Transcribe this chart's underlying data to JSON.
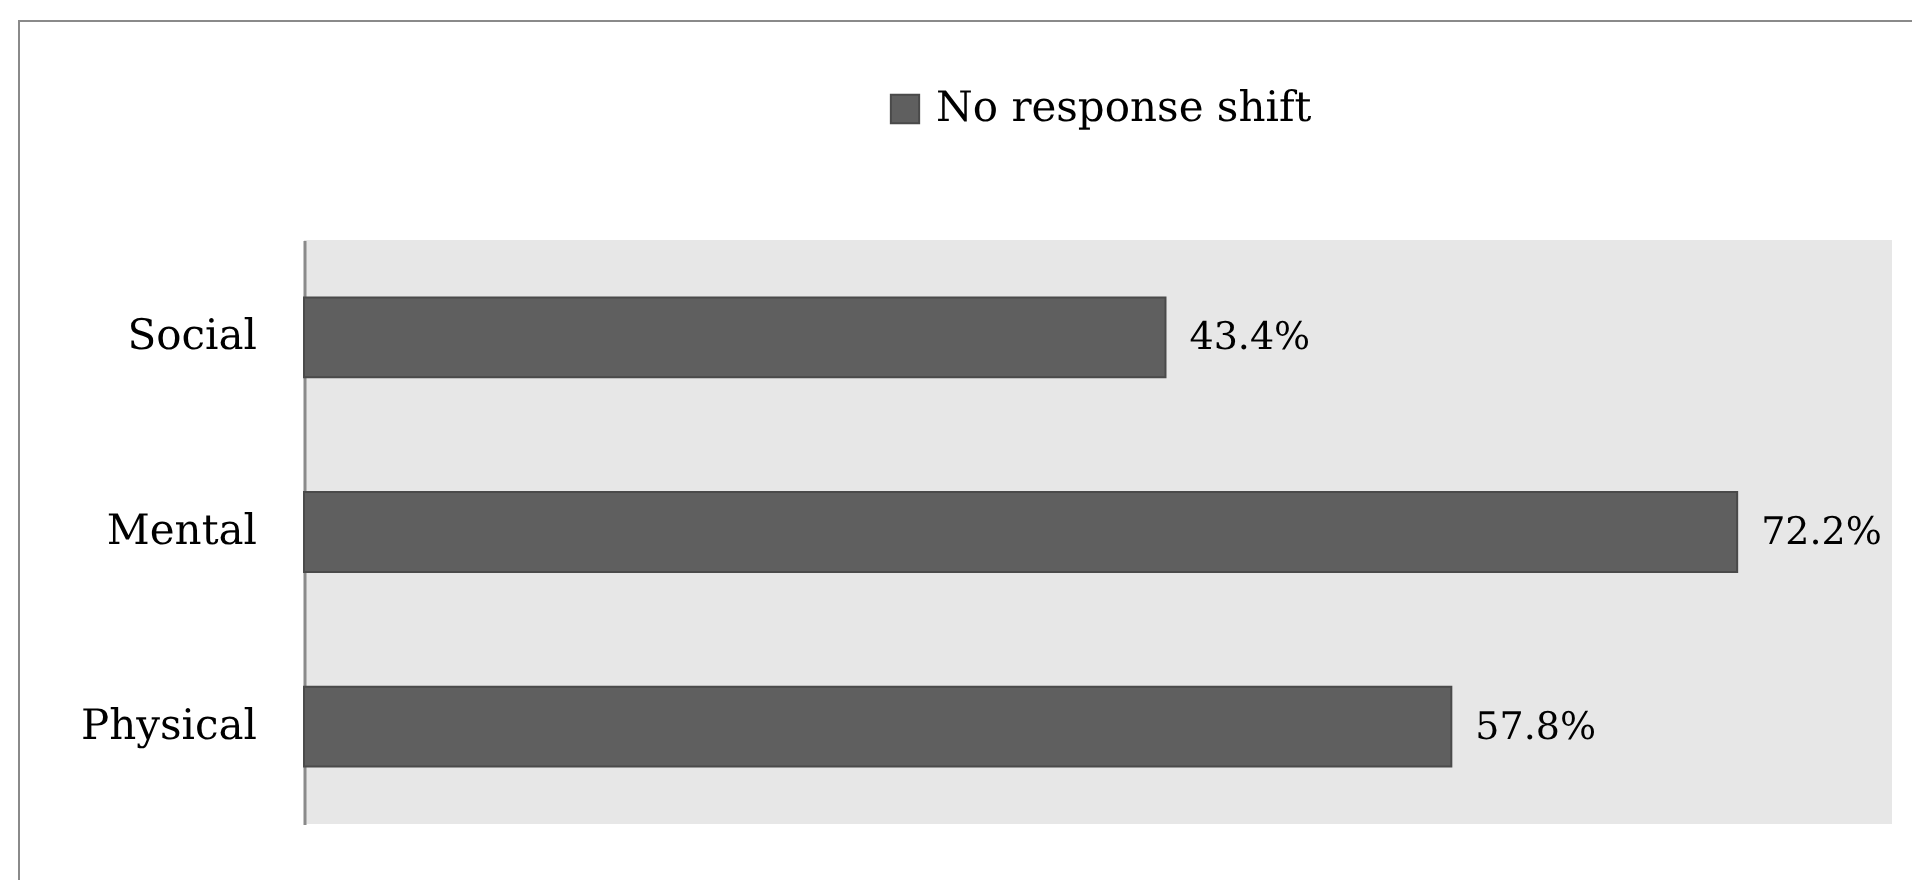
{
  "chart_data": {
    "type": "bar",
    "orientation": "horizontal",
    "categories": [
      "Social",
      "Mental",
      "Physical"
    ],
    "series": [
      {
        "name": "No response shift",
        "color": "#5f5f5f",
        "values": [
          43.4,
          72.2,
          57.8
        ],
        "value_labels": [
          "43.4%",
          "72.2%",
          "57.8%"
        ]
      }
    ],
    "xlim": [
      0,
      80
    ],
    "legend": "top",
    "tick_labels": "y"
  }
}
